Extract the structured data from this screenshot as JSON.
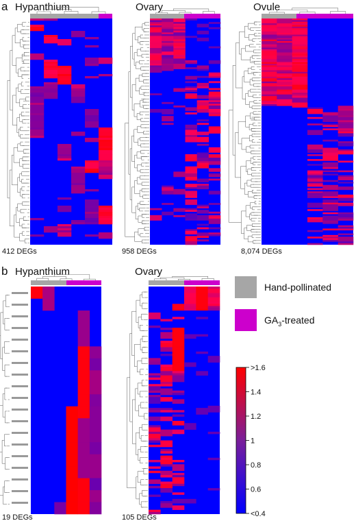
{
  "figure": {
    "panel_a": {
      "label": "a",
      "heatmaps": [
        {
          "title": "Hypanthium",
          "deg_count": "412 DEGs"
        },
        {
          "title": "Ovary",
          "deg_count": "958 DEGs"
        },
        {
          "title": "Ovule",
          "deg_count": "8,074 DEGs"
        }
      ]
    },
    "panel_b": {
      "label": "b",
      "heatmaps": [
        {
          "title": "Hypanthium",
          "deg_count": "19 DEGs"
        },
        {
          "title": "Ovary",
          "deg_count": "105 DEGs"
        }
      ]
    },
    "legend": {
      "items": [
        {
          "label": "Hand-pollinated",
          "color": "#a6a6a6"
        },
        {
          "label_main": "GA",
          "label_sub": "3",
          "label_suffix": "-treated",
          "color": "#cc00cc"
        }
      ]
    },
    "colorbar": {
      "ticks": [
        ">1.6",
        "1.4",
        "1.2",
        "1",
        "0.8",
        "0.6",
        "<0.4"
      ],
      "low_color": "#0000ff",
      "mid_color": "#7a1f9a",
      "high_color": "#ff0000"
    }
  }
}
